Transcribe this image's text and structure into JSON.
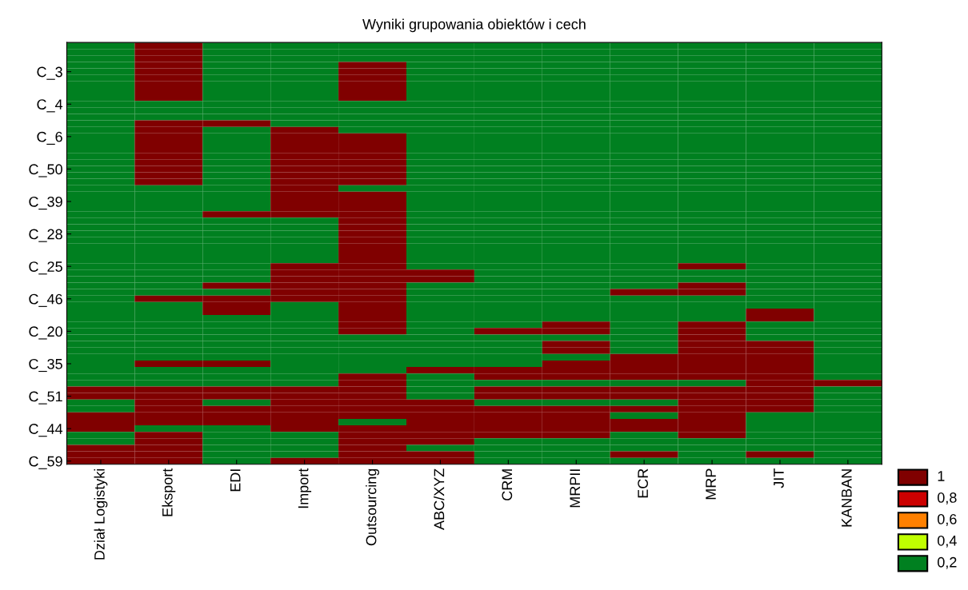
{
  "chart_data": {
    "type": "heatmap",
    "title": "Wyniki grupowania obiektów i cech",
    "categories": [
      "Dział Logistyki",
      "Eksport",
      "EDI",
      "Import",
      "Outsourcing",
      "ABC/XYZ",
      "CRM",
      "MRPII",
      "ECR",
      "MRP",
      "JIT",
      "KANBAN"
    ],
    "y_categories": [
      null,
      null,
      null,
      null,
      "C_3",
      null,
      null,
      null,
      null,
      "C_4",
      null,
      null,
      null,
      null,
      "C_6",
      null,
      null,
      null,
      null,
      "C_50",
      null,
      null,
      null,
      null,
      "C_39",
      null,
      null,
      null,
      null,
      "C_28",
      null,
      null,
      null,
      null,
      "C_25",
      null,
      null,
      null,
      null,
      "C_46",
      null,
      null,
      null,
      null,
      "C_20",
      null,
      null,
      null,
      null,
      "C_35",
      null,
      null,
      null,
      null,
      "C_51",
      null,
      null,
      null,
      null,
      "C_44",
      null,
      null,
      null,
      null,
      "C_59"
    ],
    "cells": [
      [
        0.2,
        1,
        0.2,
        0.2,
        0.2,
        0.2,
        0.2,
        0.2,
        0.2,
        0.2,
        0.2,
        0.2
      ],
      [
        0.2,
        1,
        0.2,
        0.2,
        0.2,
        0.2,
        0.2,
        0.2,
        0.2,
        0.2,
        0.2,
        0.2
      ],
      [
        0.2,
        1,
        0.2,
        0.2,
        0.2,
        0.2,
        0.2,
        0.2,
        0.2,
        0.2,
        0.2,
        0.2
      ],
      [
        0.2,
        1,
        0.2,
        0.2,
        1,
        0.2,
        0.2,
        0.2,
        0.2,
        0.2,
        0.2,
        0.2
      ],
      [
        0.2,
        1,
        0.2,
        0.2,
        1,
        0.2,
        0.2,
        0.2,
        0.2,
        0.2,
        0.2,
        0.2
      ],
      [
        0.2,
        1,
        0.2,
        0.2,
        1,
        0.2,
        0.2,
        0.2,
        0.2,
        0.2,
        0.2,
        0.2
      ],
      [
        0.2,
        1,
        0.2,
        0.2,
        1,
        0.2,
        0.2,
        0.2,
        0.2,
        0.2,
        0.2,
        0.2
      ],
      [
        0.2,
        1,
        0.2,
        0.2,
        1,
        0.2,
        0.2,
        0.2,
        0.2,
        0.2,
        0.2,
        0.2
      ],
      [
        0.2,
        1,
        0.2,
        0.2,
        1,
        0.2,
        0.2,
        0.2,
        0.2,
        0.2,
        0.2,
        0.2
      ],
      [
        0.2,
        0.2,
        0.2,
        0.2,
        0.2,
        0.2,
        0.2,
        0.2,
        0.2,
        0.2,
        0.2,
        0.2
      ],
      [
        0.2,
        0.2,
        0.2,
        0.2,
        0.2,
        0.2,
        0.2,
        0.2,
        0.2,
        0.2,
        0.2,
        0.2
      ],
      [
        0.2,
        0.2,
        0.2,
        0.2,
        0.2,
        0.2,
        0.2,
        0.2,
        0.2,
        0.2,
        0.2,
        0.2
      ],
      [
        0.2,
        1,
        1,
        0.2,
        0.2,
        0.2,
        0.2,
        0.2,
        0.2,
        0.2,
        0.2,
        0.2
      ],
      [
        0.2,
        1,
        0.2,
        1,
        0.2,
        0.2,
        0.2,
        0.2,
        0.2,
        0.2,
        0.2,
        0.2
      ],
      [
        0.2,
        1,
        0.2,
        1,
        1,
        0.2,
        0.2,
        0.2,
        0.2,
        0.2,
        0.2,
        0.2
      ],
      [
        0.2,
        1,
        0.2,
        1,
        1,
        0.2,
        0.2,
        0.2,
        0.2,
        0.2,
        0.2,
        0.2
      ],
      [
        0.2,
        1,
        0.2,
        1,
        1,
        0.2,
        0.2,
        0.2,
        0.2,
        0.2,
        0.2,
        0.2
      ],
      [
        0.2,
        1,
        0.2,
        1,
        1,
        0.2,
        0.2,
        0.2,
        0.2,
        0.2,
        0.2,
        0.2
      ],
      [
        0.2,
        1,
        0.2,
        1,
        1,
        0.2,
        0.2,
        0.2,
        0.2,
        0.2,
        0.2,
        0.2
      ],
      [
        0.2,
        1,
        0.2,
        1,
        1,
        0.2,
        0.2,
        0.2,
        0.2,
        0.2,
        0.2,
        0.2
      ],
      [
        0.2,
        1,
        0.2,
        1,
        1,
        0.2,
        0.2,
        0.2,
        0.2,
        0.2,
        0.2,
        0.2
      ],
      [
        0.2,
        1,
        0.2,
        1,
        1,
        0.2,
        0.2,
        0.2,
        0.2,
        0.2,
        0.2,
        0.2
      ],
      [
        0.2,
        0.2,
        0.2,
        1,
        0.2,
        0.2,
        0.2,
        0.2,
        0.2,
        0.2,
        0.2,
        0.2
      ],
      [
        0.2,
        0.2,
        0.2,
        1,
        1,
        0.2,
        0.2,
        0.2,
        0.2,
        0.2,
        0.2,
        0.2
      ],
      [
        0.2,
        0.2,
        0.2,
        1,
        1,
        0.2,
        0.2,
        0.2,
        0.2,
        0.2,
        0.2,
        0.2
      ],
      [
        0.2,
        0.2,
        0.2,
        1,
        1,
        0.2,
        0.2,
        0.2,
        0.2,
        0.2,
        0.2,
        0.2
      ],
      [
        0.2,
        0.2,
        1,
        1,
        1,
        0.2,
        0.2,
        0.2,
        0.2,
        0.2,
        0.2,
        0.2
      ],
      [
        0.2,
        0.2,
        0.2,
        0.2,
        1,
        0.2,
        0.2,
        0.2,
        0.2,
        0.2,
        0.2,
        0.2
      ],
      [
        0.2,
        0.2,
        0.2,
        0.2,
        1,
        0.2,
        0.2,
        0.2,
        0.2,
        0.2,
        0.2,
        0.2
      ],
      [
        0.2,
        0.2,
        0.2,
        0.2,
        1,
        0.2,
        0.2,
        0.2,
        0.2,
        0.2,
        0.2,
        0.2
      ],
      [
        0.2,
        0.2,
        0.2,
        0.2,
        1,
        0.2,
        0.2,
        0.2,
        0.2,
        0.2,
        0.2,
        0.2
      ],
      [
        0.2,
        0.2,
        0.2,
        0.2,
        1,
        0.2,
        0.2,
        0.2,
        0.2,
        0.2,
        0.2,
        0.2
      ],
      [
        0.2,
        0.2,
        0.2,
        0.2,
        1,
        0.2,
        0.2,
        0.2,
        0.2,
        0.2,
        0.2,
        0.2
      ],
      [
        0.2,
        0.2,
        0.2,
        0.2,
        1,
        0.2,
        0.2,
        0.2,
        0.2,
        0.2,
        0.2,
        0.2
      ],
      [
        0.2,
        0.2,
        0.2,
        1,
        1,
        0.2,
        0.2,
        0.2,
        0.2,
        1,
        0.2,
        0.2
      ],
      [
        0.2,
        0.2,
        0.2,
        1,
        1,
        1,
        0.2,
        0.2,
        0.2,
        0.2,
        0.2,
        0.2
      ],
      [
        0.2,
        0.2,
        0.2,
        1,
        1,
        1,
        0.2,
        0.2,
        0.2,
        0.2,
        0.2,
        0.2
      ],
      [
        0.2,
        0.2,
        1,
        1,
        1,
        0.2,
        0.2,
        0.2,
        0.2,
        1,
        0.2,
        0.2
      ],
      [
        0.2,
        0.2,
        0.2,
        1,
        1,
        0.2,
        0.2,
        0.2,
        1,
        1,
        0.2,
        0.2
      ],
      [
        0.2,
        1,
        1,
        1,
        1,
        0.2,
        0.2,
        0.2,
        0.2,
        0.2,
        0.2,
        0.2
      ],
      [
        0.2,
        0.2,
        1,
        0.2,
        1,
        0.2,
        0.2,
        0.2,
        0.2,
        0.2,
        0.2,
        0.2
      ],
      [
        0.2,
        0.2,
        1,
        0.2,
        1,
        0.2,
        0.2,
        0.2,
        0.2,
        0.2,
        1,
        0.2
      ],
      [
        0.2,
        0.2,
        0.2,
        0.2,
        1,
        0.2,
        0.2,
        0.2,
        0.2,
        0.2,
        1,
        0.2
      ],
      [
        0.2,
        0.2,
        0.2,
        0.2,
        1,
        0.2,
        0.2,
        1,
        0.2,
        1,
        0.2,
        0.2
      ],
      [
        0.2,
        0.2,
        0.2,
        0.2,
        1,
        0.2,
        1,
        1,
        0.2,
        1,
        0.2,
        0.2
      ],
      [
        0.2,
        0.2,
        0.2,
        0.2,
        0.2,
        0.2,
        0.2,
        0.2,
        0.2,
        1,
        0.2,
        0.2
      ],
      [
        0.2,
        0.2,
        0.2,
        0.2,
        0.2,
        0.2,
        0.2,
        1,
        0.2,
        1,
        1,
        0.2
      ],
      [
        0.2,
        0.2,
        0.2,
        0.2,
        0.2,
        0.2,
        0.2,
        1,
        0.2,
        1,
        1,
        0.2
      ],
      [
        0.2,
        0.2,
        0.2,
        0.2,
        0.2,
        0.2,
        0.2,
        0.2,
        1,
        1,
        1,
        0.2
      ],
      [
        0.2,
        1,
        1,
        0.2,
        0.2,
        0.2,
        0.2,
        1,
        1,
        1,
        1,
        0.2
      ],
      [
        0.2,
        0.2,
        0.2,
        0.2,
        0.2,
        1,
        1,
        1,
        1,
        1,
        1,
        0.2
      ],
      [
        0.2,
        0.2,
        0.2,
        0.2,
        1,
        0.2,
        1,
        1,
        1,
        1,
        1,
        0.2
      ],
      [
        0.2,
        0.2,
        0.2,
        0.2,
        1,
        0.2,
        0.2,
        0.2,
        0.2,
        0.2,
        1,
        1
      ],
      [
        1,
        1,
        1,
        1,
        1,
        0.2,
        1,
        1,
        1,
        1,
        1,
        0.2
      ],
      [
        1,
        1,
        1,
        1,
        1,
        0.2,
        1,
        1,
        1,
        1,
        1,
        0.2
      ],
      [
        0.2,
        1,
        0.2,
        1,
        1,
        1,
        0.2,
        0.2,
        0.2,
        1,
        1,
        0.2
      ],
      [
        0.2,
        1,
        1,
        1,
        1,
        1,
        1,
        1,
        1,
        1,
        1,
        0.2
      ],
      [
        1,
        1,
        1,
        1,
        1,
        1,
        1,
        1,
        0.2,
        1,
        0.2,
        0.2
      ],
      [
        1,
        1,
        1,
        1,
        0.2,
        1,
        1,
        1,
        1,
        1,
        0.2,
        0.2
      ],
      [
        1,
        0.2,
        0.2,
        1,
        1,
        1,
        1,
        1,
        1,
        1,
        0.2,
        0.2
      ],
      [
        0.2,
        1,
        0.2,
        0.2,
        1,
        1,
        1,
        1,
        0.2,
        1,
        0.2,
        0.2
      ],
      [
        0.2,
        1,
        0.2,
        0.2,
        1,
        1,
        0.2,
        0.2,
        0.2,
        0.2,
        0.2,
        0.2
      ],
      [
        1,
        1,
        0.2,
        0.2,
        1,
        0.2,
        0.2,
        0.2,
        0.2,
        0.2,
        0.2,
        0.2
      ],
      [
        1,
        1,
        0.2,
        0.2,
        1,
        1,
        0.2,
        0.2,
        1,
        0.2,
        1,
        0.2
      ],
      [
        1,
        1,
        0.2,
        1,
        1,
        1,
        0.2,
        0.2,
        0.2,
        0.2,
        0.2,
        0.2
      ]
    ],
    "cticks": [
      {
        "value": 1,
        "label": "1"
      },
      {
        "value": 0.8,
        "label": "0,8"
      },
      {
        "value": 0.6,
        "label": "0,6"
      },
      {
        "value": 0.4,
        "label": "0,4"
      },
      {
        "value": 0.2,
        "label": "0,2"
      }
    ]
  }
}
